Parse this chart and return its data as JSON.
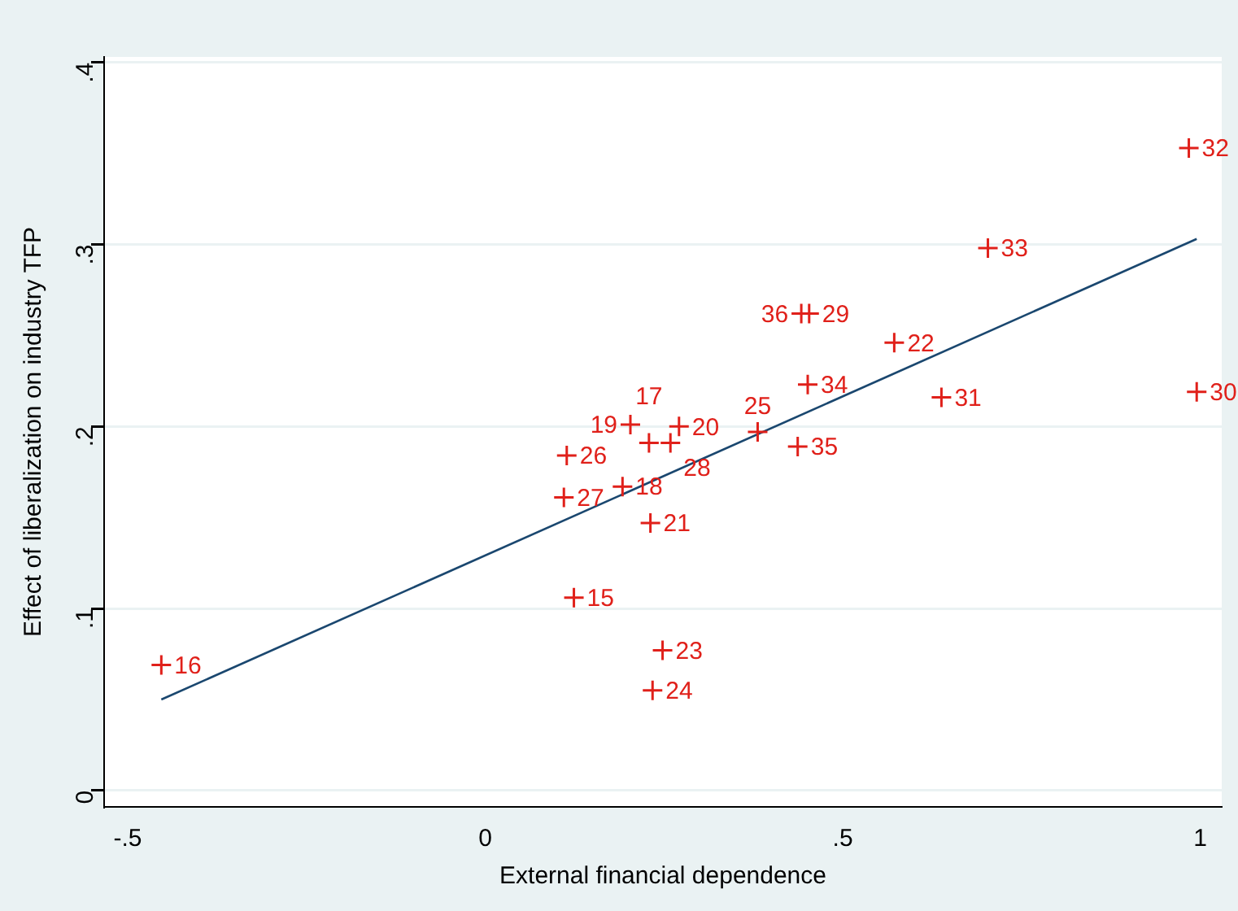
{
  "chart_data": {
    "type": "scatter",
    "xlabel": "External financial dependence",
    "ylabel": "Effect of liberalization on industry TFP",
    "xlim": [
      -0.533,
      1.03
    ],
    "ylim": [
      -0.009,
      0.403
    ],
    "xticks": [
      {
        "value": -0.5,
        "label": "-.5"
      },
      0,
      {
        "value": 0.5,
        "label": ".5"
      },
      1
    ],
    "yticks": [
      0,
      {
        "value": 0.1,
        "label": ".1"
      },
      {
        "value": 0.2,
        "label": ".2"
      },
      {
        "value": 0.3,
        "label": ".3"
      },
      {
        "value": 0.4,
        "label": ".4"
      }
    ],
    "grid": "y",
    "legend": false,
    "marker": "cross",
    "series": [
      {
        "color": "#e0201a",
        "x": [
          -0.453,
          0.124,
          0.248,
          0.234,
          0.231,
          0.11,
          0.192,
          0.114,
          0.203,
          0.271,
          0.229,
          0.259,
          0.381,
          0.437,
          0.451,
          0.442,
          0.453,
          0.572,
          0.638,
          0.703,
          0.984,
          0.995
        ],
        "values": [
          0.069,
          0.106,
          0.077,
          0.055,
          0.147,
          0.161,
          0.167,
          0.184,
          0.201,
          0.2,
          0.191,
          0.191,
          0.197,
          0.189,
          0.223,
          0.262,
          0.262,
          0.246,
          0.216,
          0.298,
          0.353,
          0.219
        ]
      },
      {
        "type": "line",
        "color": "#1a476f",
        "x": [
          -0.453,
          0.995
        ],
        "values": [
          0.05,
          0.303
        ],
        "marker": "none"
      }
    ],
    "annotations": [
      {
        "text": "16",
        "x": -0.453,
        "y": 0.069
      },
      {
        "text": "15",
        "x": 0.124,
        "y": 0.106
      },
      {
        "text": "23",
        "x": 0.248,
        "y": 0.077
      },
      {
        "text": "24",
        "x": 0.234,
        "y": 0.055
      },
      {
        "text": "21",
        "x": 0.231,
        "y": 0.147
      },
      {
        "text": "27",
        "x": 0.11,
        "y": 0.161
      },
      {
        "text": "18",
        "x": 0.192,
        "y": 0.167
      },
      {
        "text": "26",
        "x": 0.114,
        "y": 0.184
      },
      {
        "text": "19",
        "x": 0.203,
        "y": 0.201
      },
      {
        "text": "20",
        "x": 0.271,
        "y": 0.2
      },
      {
        "text": "17",
        "x": 0.229,
        "y": 0.191
      },
      {
        "text": "28",
        "x": 0.259,
        "y": 0.191
      },
      {
        "text": "25",
        "x": 0.381,
        "y": 0.197
      },
      {
        "text": "35",
        "x": 0.437,
        "y": 0.189
      },
      {
        "text": "34",
        "x": 0.451,
        "y": 0.223
      },
      {
        "text": "36",
        "x": 0.442,
        "y": 0.262
      },
      {
        "text": "29",
        "x": 0.453,
        "y": 0.262
      },
      {
        "text": "22",
        "x": 0.572,
        "y": 0.246
      },
      {
        "text": "31",
        "x": 0.638,
        "y": 0.216
      },
      {
        "text": "33",
        "x": 0.703,
        "y": 0.298
      },
      {
        "text": "32",
        "x": 0.984,
        "y": 0.353
      },
      {
        "text": "30",
        "x": 0.995,
        "y": 0.219
      }
    ]
  }
}
